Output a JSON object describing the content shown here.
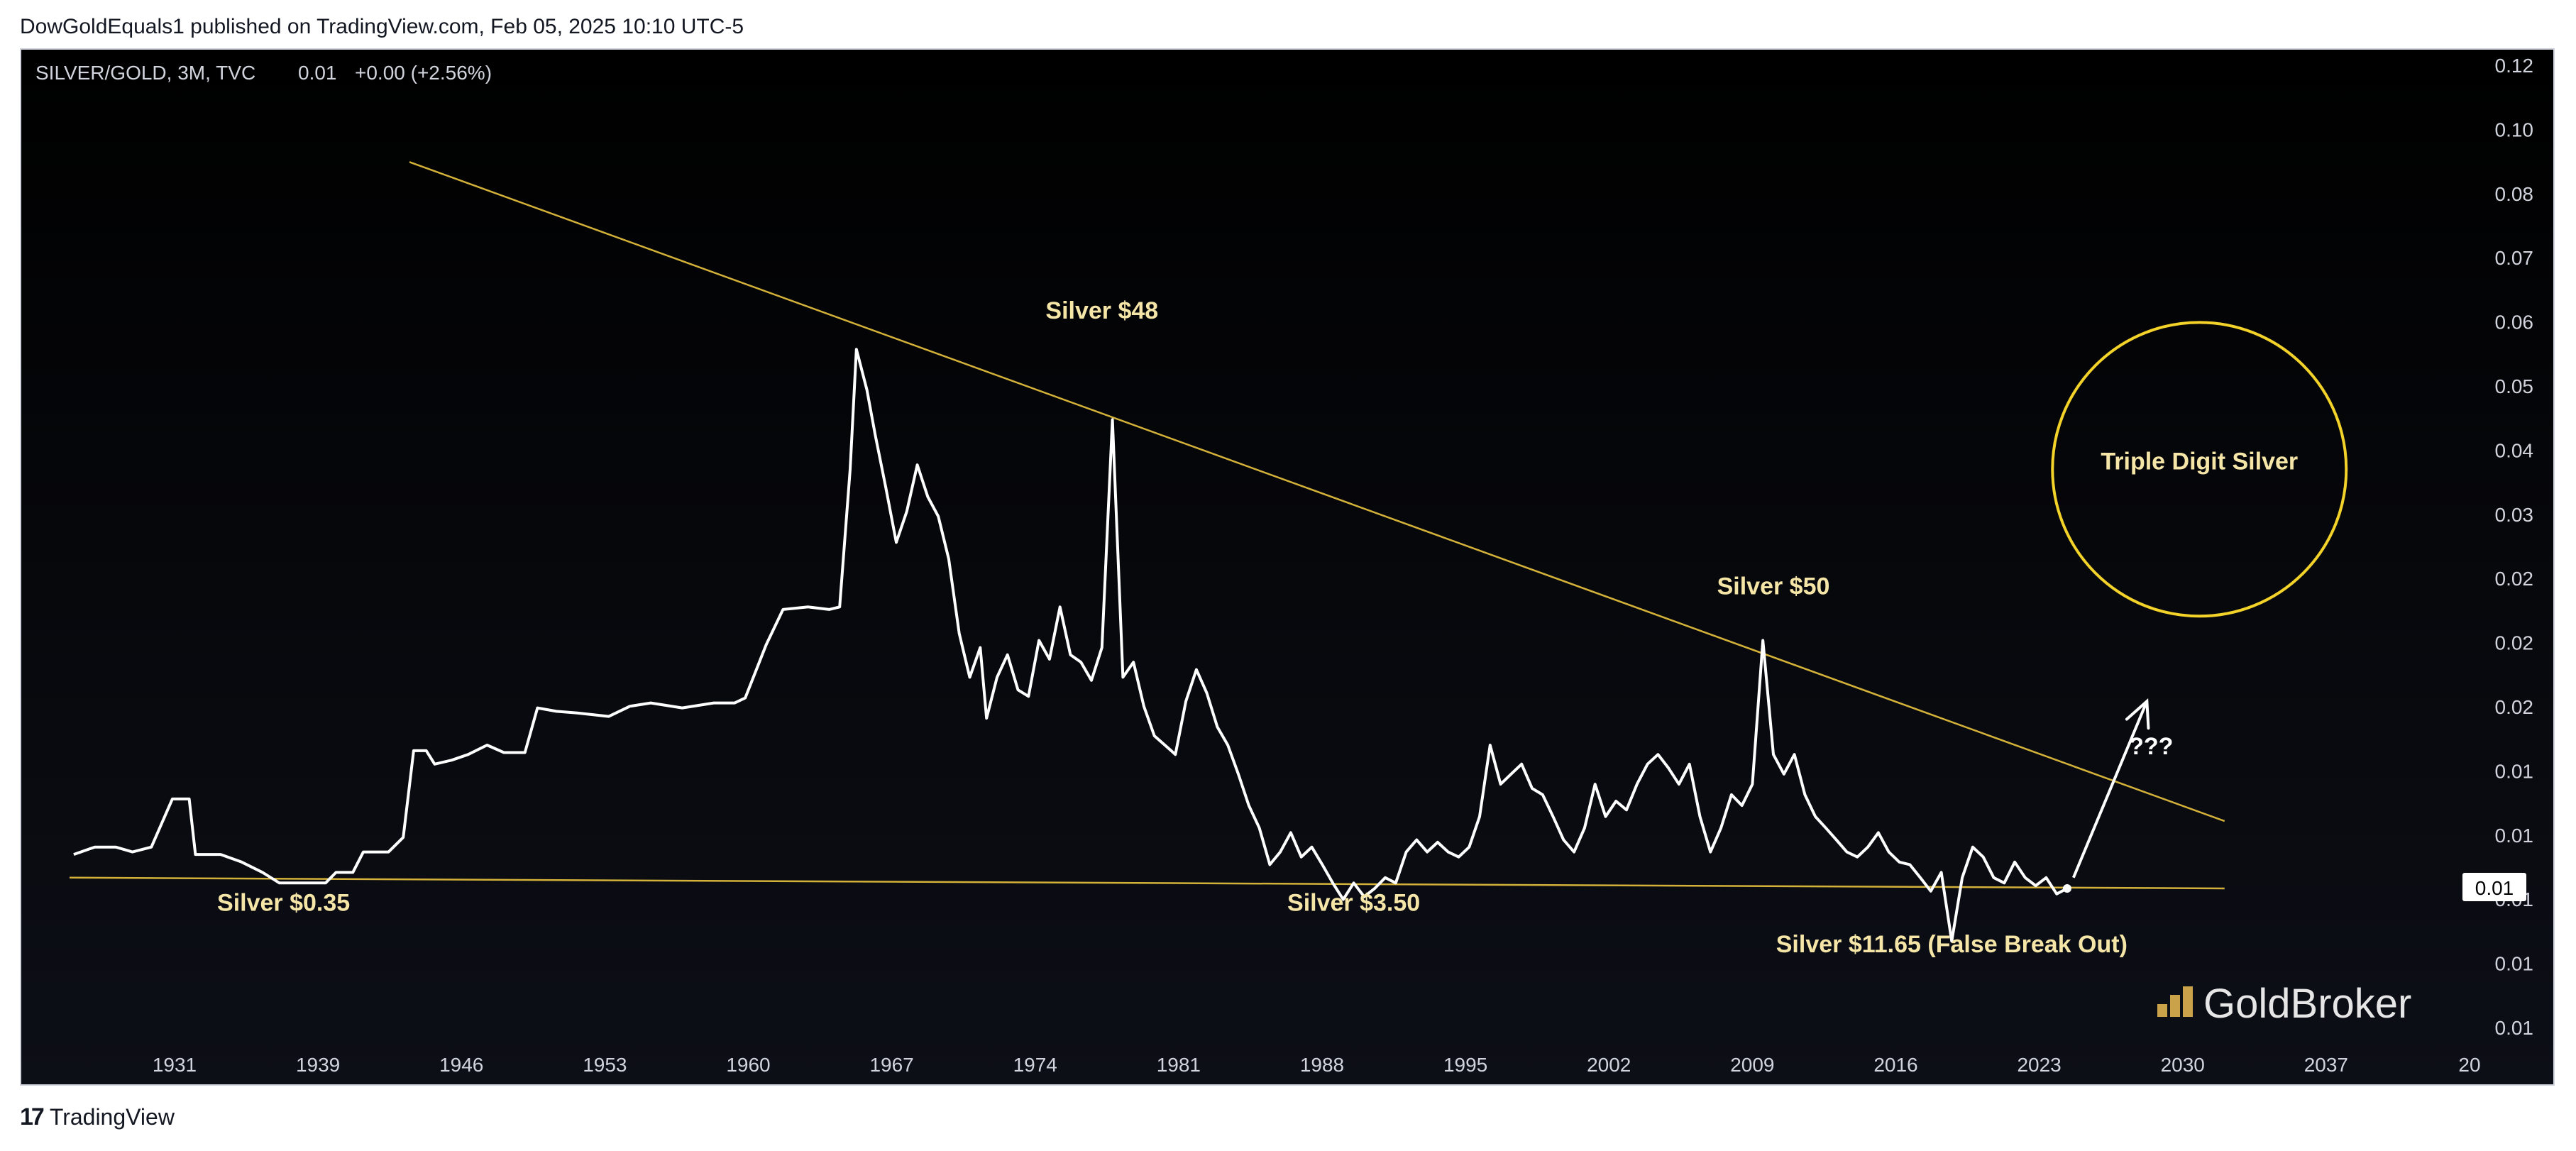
{
  "header": {
    "published": "DowGoldEquals1 published on TradingView.com, Feb 05, 2025 10:10 UTC-5"
  },
  "footer": {
    "logo_icon": "tradingview-logo-icon",
    "label": "TradingView"
  },
  "colors": {
    "background": "#000000",
    "line": "#ffffff",
    "trendline": "#d4b23a",
    "annotation": "#f5e6a8",
    "circle": "#f3d22a",
    "axis_text": "#d1d4dc"
  },
  "chart_data": {
    "type": "line",
    "title": "SILVER/GOLD, 3M, TVC",
    "legend": {
      "symbol": "SILVER/GOLD, 3M, TVC",
      "last": "0.01",
      "change": "+0.00 (+2.56%)"
    },
    "x_ticks": [
      "1931",
      "1939",
      "1946",
      "1953",
      "1960",
      "1967",
      "1974",
      "1981",
      "1988",
      "1995",
      "2002",
      "2009",
      "2016",
      "2023",
      "2030",
      "2037",
      "20"
    ],
    "y_tick_labels": [
      "0.12",
      "0.10",
      "0.08",
      "0.07",
      "0.06",
      "0.05",
      "0.04",
      "0.03",
      "0.02",
      "0.02",
      "0.02",
      "0.01",
      "0.01",
      "0.01",
      "0.01",
      "0.01"
    ],
    "last_price_label": "0.01",
    "scale": "log",
    "ylim": [
      0.0088,
      0.125
    ],
    "xlim": [
      1928,
      2044
    ],
    "grid": false,
    "series": [
      {
        "values": [
          [
            1930.5,
            0.0149
          ],
          [
            1931.5,
            0.0152
          ],
          [
            1932.5,
            0.0152
          ],
          [
            1933.3,
            0.015
          ],
          [
            1934.2,
            0.0152
          ],
          [
            1935.2,
            0.0173
          ],
          [
            1936.0,
            0.0173
          ],
          [
            1936.3,
            0.0149
          ],
          [
            1937.5,
            0.0149
          ],
          [
            1938.5,
            0.0146
          ],
          [
            1939.5,
            0.0142
          ],
          [
            1940.3,
            0.0138
          ],
          [
            1941.0,
            0.0138
          ],
          [
            1942.5,
            0.0138
          ],
          [
            1943.0,
            0.0142
          ],
          [
            1943.8,
            0.0142
          ],
          [
            1944.3,
            0.015
          ],
          [
            1945.5,
            0.015
          ],
          [
            1946.2,
            0.0156
          ],
          [
            1946.7,
            0.0197
          ],
          [
            1947.3,
            0.0197
          ],
          [
            1947.7,
            0.019
          ],
          [
            1948.5,
            0.0192
          ],
          [
            1949.3,
            0.0195
          ],
          [
            1950.2,
            0.02
          ],
          [
            1951.0,
            0.0196
          ],
          [
            1952.0,
            0.0196
          ],
          [
            1952.6,
            0.0221
          ],
          [
            1953.5,
            0.0219
          ],
          [
            1954.5,
            0.0218
          ],
          [
            1956.0,
            0.0216
          ],
          [
            1957.0,
            0.0222
          ],
          [
            1958.0,
            0.0224
          ],
          [
            1959.5,
            0.0221
          ],
          [
            1961.0,
            0.0224
          ],
          [
            1962.0,
            0.0224
          ],
          [
            1962.5,
            0.0227
          ],
          [
            1963.5,
            0.0262
          ],
          [
            1964.3,
            0.0288
          ],
          [
            1965.5,
            0.029
          ],
          [
            1966.5,
            0.0288
          ],
          [
            1967.0,
            0.029
          ],
          [
            1967.5,
            0.042
          ],
          [
            1967.8,
            0.058
          ],
          [
            1968.3,
            0.052
          ],
          [
            1968.7,
            0.046
          ],
          [
            1969.2,
            0.04
          ],
          [
            1969.7,
            0.0345
          ],
          [
            1970.2,
            0.0375
          ],
          [
            1970.7,
            0.0425
          ],
          [
            1971.2,
            0.039
          ],
          [
            1971.7,
            0.037
          ],
          [
            1972.2,
            0.033
          ],
          [
            1972.7,
            0.027
          ],
          [
            1973.2,
            0.024
          ],
          [
            1973.7,
            0.026
          ],
          [
            1974.0,
            0.0215
          ],
          [
            1974.5,
            0.024
          ],
          [
            1975.0,
            0.0255
          ],
          [
            1975.5,
            0.0232
          ],
          [
            1976.0,
            0.0228
          ],
          [
            1976.5,
            0.0265
          ],
          [
            1977.0,
            0.0252
          ],
          [
            1977.5,
            0.029
          ],
          [
            1978.0,
            0.0255
          ],
          [
            1978.5,
            0.025
          ],
          [
            1979.0,
            0.0238
          ],
          [
            1979.5,
            0.026
          ],
          [
            1980.0,
            0.048
          ],
          [
            1980.5,
            0.024
          ],
          [
            1981.0,
            0.025
          ],
          [
            1981.5,
            0.0222
          ],
          [
            1982.0,
            0.0205
          ],
          [
            1982.5,
            0.02
          ],
          [
            1983.0,
            0.0195
          ],
          [
            1983.5,
            0.0225
          ],
          [
            1984.0,
            0.0245
          ],
          [
            1984.5,
            0.023
          ],
          [
            1985.0,
            0.021
          ],
          [
            1985.5,
            0.02
          ],
          [
            1986.0,
            0.0185
          ],
          [
            1986.5,
            0.017
          ],
          [
            1987.0,
            0.016
          ],
          [
            1987.5,
            0.0145
          ],
          [
            1988.0,
            0.015
          ],
          [
            1988.5,
            0.0158
          ],
          [
            1989.0,
            0.0148
          ],
          [
            1989.5,
            0.0152
          ],
          [
            1990.0,
            0.0145
          ],
          [
            1990.5,
            0.0138
          ],
          [
            1991.0,
            0.0132
          ],
          [
            1991.5,
            0.0138
          ],
          [
            1992.0,
            0.0133
          ],
          [
            1992.5,
            0.0136
          ],
          [
            1993.0,
            0.014
          ],
          [
            1993.5,
            0.0138
          ],
          [
            1994.0,
            0.015
          ],
          [
            1994.5,
            0.0155
          ],
          [
            1995.0,
            0.015
          ],
          [
            1995.5,
            0.0154
          ],
          [
            1996.0,
            0.015
          ],
          [
            1996.5,
            0.0148
          ],
          [
            1997.0,
            0.0152
          ],
          [
            1997.5,
            0.0165
          ],
          [
            1998.0,
            0.02
          ],
          [
            1998.5,
            0.018
          ],
          [
            1999.0,
            0.0185
          ],
          [
            1999.5,
            0.019
          ],
          [
            2000.0,
            0.0178
          ],
          [
            2000.5,
            0.0175
          ],
          [
            2001.0,
            0.0165
          ],
          [
            2001.5,
            0.0155
          ],
          [
            2002.0,
            0.015
          ],
          [
            2002.5,
            0.016
          ],
          [
            2003.0,
            0.018
          ],
          [
            2003.5,
            0.0165
          ],
          [
            2004.0,
            0.0172
          ],
          [
            2004.5,
            0.0168
          ],
          [
            2005.0,
            0.018
          ],
          [
            2005.5,
            0.019
          ],
          [
            2006.0,
            0.0195
          ],
          [
            2006.5,
            0.0188
          ],
          [
            2007.0,
            0.018
          ],
          [
            2007.5,
            0.019
          ],
          [
            2008.0,
            0.0165
          ],
          [
            2008.5,
            0.015
          ],
          [
            2009.0,
            0.016
          ],
          [
            2009.5,
            0.0175
          ],
          [
            2010.0,
            0.017
          ],
          [
            2010.5,
            0.018
          ],
          [
            2011.0,
            0.0265
          ],
          [
            2011.5,
            0.0195
          ],
          [
            2012.0,
            0.0185
          ],
          [
            2012.5,
            0.0195
          ],
          [
            2013.0,
            0.0175
          ],
          [
            2013.5,
            0.0165
          ],
          [
            2014.0,
            0.016
          ],
          [
            2014.5,
            0.0155
          ],
          [
            2015.0,
            0.015
          ],
          [
            2015.5,
            0.0148
          ],
          [
            2016.0,
            0.0152
          ],
          [
            2016.5,
            0.0158
          ],
          [
            2017.0,
            0.015
          ],
          [
            2017.5,
            0.0146
          ],
          [
            2018.0,
            0.0145
          ],
          [
            2018.5,
            0.014
          ],
          [
            2019.0,
            0.0135
          ],
          [
            2019.5,
            0.0142
          ],
          [
            2020.0,
            0.0118
          ],
          [
            2020.5,
            0.014
          ],
          [
            2021.0,
            0.0152
          ],
          [
            2021.5,
            0.0148
          ],
          [
            2022.0,
            0.014
          ],
          [
            2022.5,
            0.0138
          ],
          [
            2023.0,
            0.0146
          ],
          [
            2023.5,
            0.014
          ],
          [
            2024.0,
            0.0137
          ],
          [
            2024.5,
            0.014
          ],
          [
            2025.0,
            0.0134
          ],
          [
            2025.5,
            0.0136
          ]
        ]
      }
    ],
    "trendlines": [
      {
        "points": [
          [
            1946.5,
            0.096
          ],
          [
            2033.0,
            0.0163
          ]
        ]
      },
      {
        "points": [
          [
            1930.3,
            0.014
          ],
          [
            2033.0,
            0.0136
          ]
        ]
      }
    ],
    "annotations": [
      {
        "text": "Silver $0.35",
        "x": 1940.5,
        "y": 0.0128
      },
      {
        "text": "Silver $48",
        "x": 1979.5,
        "y": 0.063
      },
      {
        "text": "Silver $3.50",
        "x": 1991.5,
        "y": 0.0128
      },
      {
        "text": "Silver $50",
        "x": 2011.5,
        "y": 0.03
      },
      {
        "text": "Silver $11.65 (False Break Out)",
        "x": 2020.0,
        "y": 0.01145
      },
      {
        "text": "Triple Digit Silver",
        "x": 2031.8,
        "y": 0.042
      },
      {
        "text": "???",
        "x": 2029.5,
        "y": 0.0195
      }
    ],
    "arrow": {
      "from": [
        2025.8,
        0.014
      ],
      "to": [
        2029.3,
        0.0225
      ]
    },
    "circle": {
      "center_x": 2031.8,
      "center_y": 0.042,
      "radius_years": 7.0
    },
    "watermark": "GoldBroker"
  }
}
